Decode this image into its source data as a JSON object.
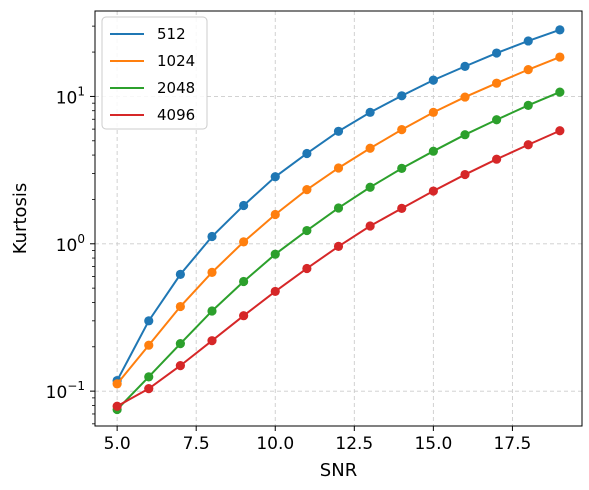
{
  "chart_data": {
    "type": "line",
    "title": "",
    "xlabel": "SNR",
    "ylabel": "Kurtosis",
    "xscale": "linear",
    "yscale": "log",
    "xlim": [
      4.3,
      19.7
    ],
    "ylim": [
      0.058,
      38
    ],
    "grid": true,
    "legend_position": "top-left",
    "x": [
      5,
      6,
      7,
      8,
      9,
      10,
      11,
      12,
      13,
      14,
      15,
      16,
      17,
      18,
      19
    ],
    "xticks": [
      {
        "value": 5.0,
        "label": "5.0"
      },
      {
        "value": 7.5,
        "label": "7.5"
      },
      {
        "value": 10.0,
        "label": "10.0"
      },
      {
        "value": 12.5,
        "label": "12.5"
      },
      {
        "value": 15.0,
        "label": "15.0"
      },
      {
        "value": 17.5,
        "label": "17.5"
      }
    ],
    "yticks": [
      {
        "value": 0.1,
        "base": "10",
        "exp": "−1"
      },
      {
        "value": 1,
        "base": "10",
        "exp": "0"
      },
      {
        "value": 10,
        "base": "10",
        "exp": "1"
      }
    ],
    "series": [
      {
        "name": "512",
        "color": "#1f77b4",
        "values": [
          0.118,
          0.3,
          0.62,
          1.12,
          1.82,
          2.85,
          4.1,
          5.8,
          7.8,
          10.1,
          12.9,
          16.0,
          19.7,
          23.8,
          28.3
        ]
      },
      {
        "name": "1024",
        "color": "#ff7f0e",
        "values": [
          0.112,
          0.205,
          0.375,
          0.64,
          1.03,
          1.58,
          2.33,
          3.27,
          4.45,
          5.95,
          7.8,
          9.9,
          12.3,
          15.2,
          18.5
        ]
      },
      {
        "name": "2048",
        "color": "#2ca02c",
        "values": [
          0.075,
          0.125,
          0.21,
          0.35,
          0.555,
          0.85,
          1.23,
          1.75,
          2.42,
          3.25,
          4.25,
          5.5,
          6.95,
          8.7,
          10.7
        ]
      },
      {
        "name": "4096",
        "color": "#d62728",
        "values": [
          0.079,
          0.104,
          0.149,
          0.22,
          0.325,
          0.475,
          0.68,
          0.96,
          1.32,
          1.74,
          2.28,
          2.95,
          3.75,
          4.7,
          5.85
        ]
      }
    ]
  }
}
